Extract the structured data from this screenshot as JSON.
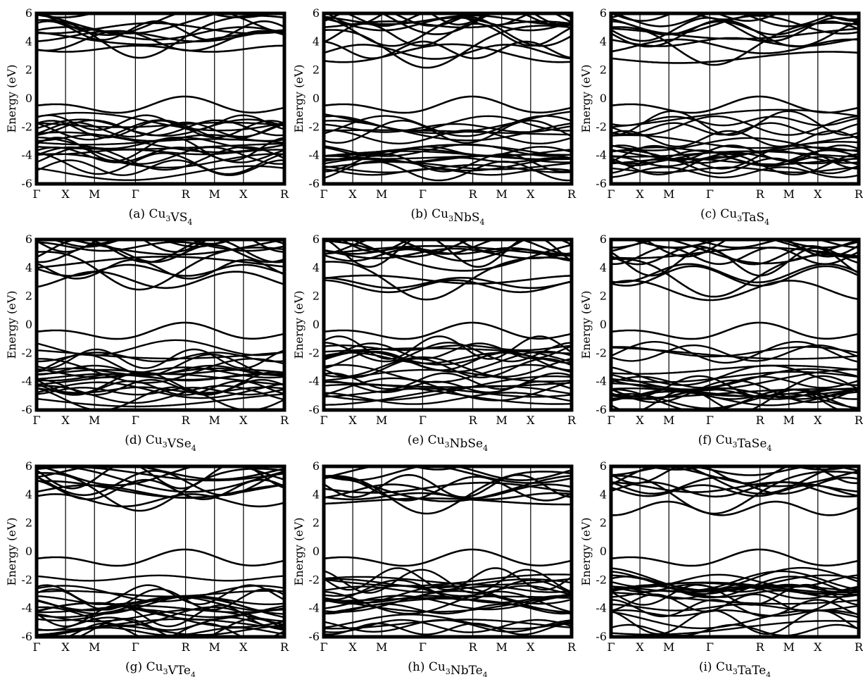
{
  "figure": {
    "panels": [
      {
        "id": "a",
        "caption_prefix": "(a)",
        "formula": [
          {
            "t": "Cu"
          },
          {
            "t": "3",
            "sub": true
          },
          {
            "t": "VS"
          },
          {
            "t": "4",
            "sub": true
          }
        ],
        "cb_min": 3.0,
        "vb_max": 0.0,
        "char_down": 1.0
      },
      {
        "id": "b",
        "caption_prefix": "(b)",
        "formula": [
          {
            "t": "Cu"
          },
          {
            "t": "3",
            "sub": true
          },
          {
            "t": "NbS"
          },
          {
            "t": "4",
            "sub": true
          }
        ],
        "cb_min": 2.3,
        "vb_max": 0.0,
        "char_down": 1.0
      },
      {
        "id": "c",
        "caption_prefix": "(c)",
        "formula": [
          {
            "t": "Cu"
          },
          {
            "t": "3",
            "sub": true
          },
          {
            "t": "TaS"
          },
          {
            "t": "4",
            "sub": true
          }
        ],
        "cb_min": 2.5,
        "vb_max": 0.0,
        "char_down": 1.0
      },
      {
        "id": "d",
        "caption_prefix": "(d)",
        "formula": [
          {
            "t": "Cu"
          },
          {
            "t": "3",
            "sub": true
          },
          {
            "t": "VSe"
          },
          {
            "t": "4",
            "sub": true
          }
        ],
        "cb_min": 2.6,
        "vb_max": 0.0,
        "char_down": 1.1
      },
      {
        "id": "e",
        "caption_prefix": "(e)",
        "formula": [
          {
            "t": "Cu"
          },
          {
            "t": "3",
            "sub": true
          },
          {
            "t": "NbSe"
          },
          {
            "t": "4",
            "sub": true
          }
        ],
        "cb_min": 1.9,
        "vb_max": 0.0,
        "char_down": 1.1
      },
      {
        "id": "f",
        "caption_prefix": "(f)",
        "formula": [
          {
            "t": "Cu"
          },
          {
            "t": "3",
            "sub": true
          },
          {
            "t": "TaSe"
          },
          {
            "t": "4",
            "sub": true
          }
        ],
        "cb_min": 2.1,
        "vb_max": 0.0,
        "char_down": 1.1
      },
      {
        "id": "g",
        "caption_prefix": "(g)",
        "formula": [
          {
            "t": "Cu"
          },
          {
            "t": "3",
            "sub": true
          },
          {
            "t": "VTe"
          },
          {
            "t": "4",
            "sub": true
          }
        ],
        "cb_min": 3.0,
        "vb_max": 0.0,
        "char_down": 1.2
      },
      {
        "id": "h",
        "caption_prefix": "(h)",
        "formula": [
          {
            "t": "Cu"
          },
          {
            "t": "3",
            "sub": true
          },
          {
            "t": "NbTe"
          },
          {
            "t": "4",
            "sub": true
          }
        ],
        "cb_min": 2.8,
        "vb_max": 0.0,
        "char_down": 1.2
      },
      {
        "id": "i",
        "caption_prefix": "(i)",
        "formula": [
          {
            "t": "Cu"
          },
          {
            "t": "3",
            "sub": true
          },
          {
            "t": "TaTe"
          },
          {
            "t": "4",
            "sub": true
          }
        ],
        "cb_min": 2.8,
        "vb_max": 0.0,
        "char_down": 1.2
      }
    ]
  },
  "chart_data": {
    "type": "line",
    "ylabel": "Energy (eV)",
    "ylim": [
      -6,
      6
    ],
    "yticks": [
      -6,
      -4,
      -2,
      0,
      2,
      4,
      6
    ],
    "xticks": [
      "Γ",
      "X",
      "M",
      "Γ",
      "R",
      "M",
      "X",
      "R"
    ],
    "kpath_positions": [
      0,
      0.5,
      1.0,
      1.707,
      2.573,
      3.073,
      3.573,
      4.28
    ],
    "grid": false,
    "legend": "none",
    "line_color": "#000000"
  }
}
